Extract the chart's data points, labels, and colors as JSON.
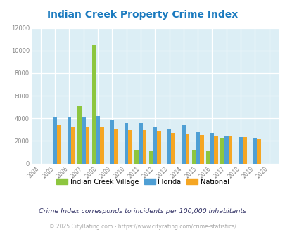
{
  "title": "Indian Creek Property Crime Index",
  "years": [
    2004,
    2005,
    2006,
    2007,
    2008,
    2009,
    2010,
    2011,
    2012,
    2013,
    2014,
    2015,
    2016,
    2017,
    2018,
    2019,
    2020
  ],
  "indian_creek": [
    null,
    null,
    null,
    5100,
    10500,
    null,
    null,
    1200,
    1100,
    null,
    null,
    1150,
    1100,
    2200,
    null,
    null,
    null
  ],
  "florida": [
    null,
    4050,
    4050,
    4100,
    4200,
    3900,
    3600,
    3600,
    3250,
    3100,
    3400,
    2800,
    2700,
    2450,
    2350,
    2200,
    null
  ],
  "national": [
    null,
    3400,
    3300,
    3200,
    3200,
    3000,
    2950,
    2950,
    2900,
    2700,
    2650,
    2550,
    2450,
    2400,
    2350,
    2150,
    null
  ],
  "bar_width": 0.28,
  "colors": {
    "indian_creek": "#8dc63f",
    "florida": "#4f9fd4",
    "national": "#f5a623"
  },
  "ylim": [
    0,
    12000
  ],
  "yticks": [
    0,
    2000,
    4000,
    6000,
    8000,
    10000,
    12000
  ],
  "bg_color": "#dceef5",
  "title_color": "#1a7abf",
  "title_fontsize": 10,
  "legend_labels": [
    "Indian Creek Village",
    "Florida",
    "National"
  ],
  "note_text": "Crime Index corresponds to incidents per 100,000 inhabitants",
  "footer_text": "© 2025 CityRating.com - https://www.cityrating.com/crime-statistics/",
  "note_color": "#333366",
  "footer_color": "#aaaaaa"
}
